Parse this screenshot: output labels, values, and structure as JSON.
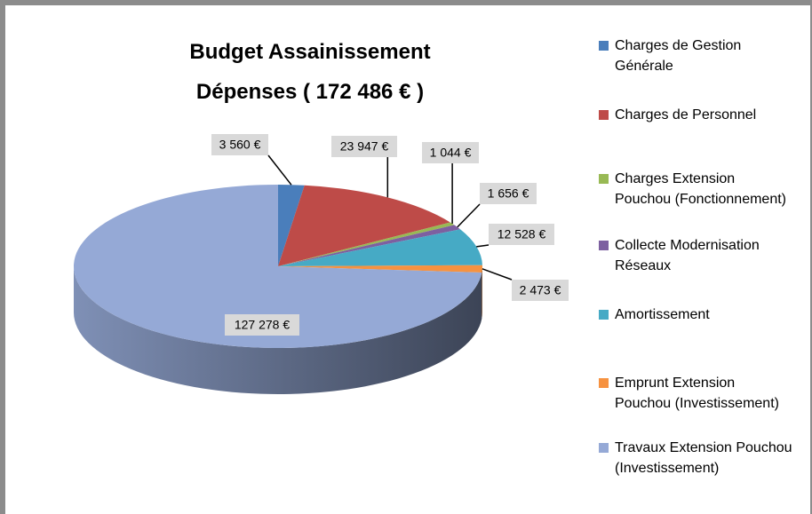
{
  "chart_data": {
    "type": "pie",
    "title": "Budget Assainissement Dépenses ( 172 486 € )",
    "categories": [
      "Charges de Gestion Générale",
      "Charges de Personnel",
      "Charges Extension Pouchou (Fonctionnement)",
      "Collecte Modernisation Réseaux",
      "Amortissement",
      "Emprunt Extension Pouchou (Investissement)",
      "Travaux Extension Pouchou (Investissement)"
    ],
    "values": [
      3560,
      23947,
      1044,
      1656,
      12528,
      2473,
      127278
    ],
    "value_labels": [
      "3 560 €",
      "23 947 €",
      "1 044 €",
      "1 656 €",
      "12 528 €",
      "2 473 €",
      "127 278 €"
    ],
    "colors": [
      "#4a7ebb",
      "#be4b48",
      "#98b954",
      "#7d60a0",
      "#46aac5",
      "#f69240",
      "#95a9d6"
    ],
    "legend": "right"
  }
}
